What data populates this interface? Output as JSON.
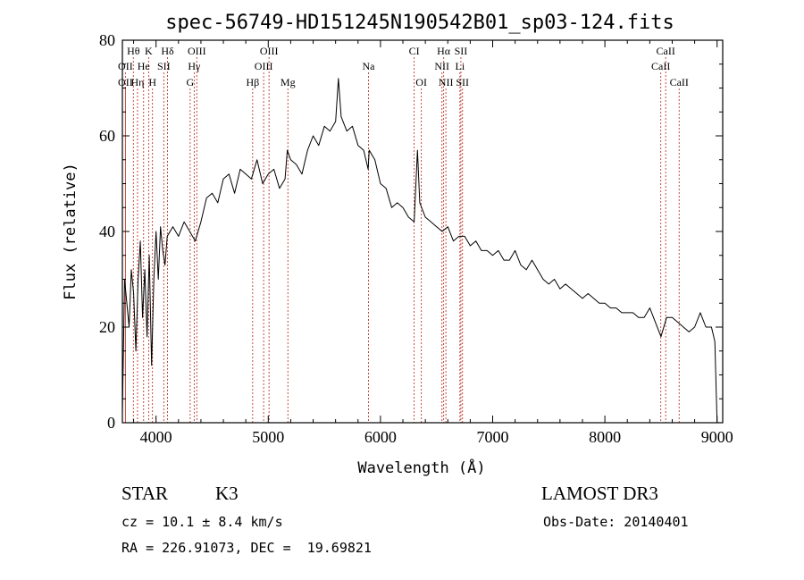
{
  "chart_data": {
    "type": "line",
    "title": "spec-56749-HD151245N190542B01_sp03-124.fits",
    "xlabel": "Wavelength (Å)",
    "ylabel": "Flux (relative)",
    "xlim": [
      3700,
      9050
    ],
    "ylim": [
      0,
      80
    ],
    "xticks": [
      4000,
      5000,
      6000,
      7000,
      8000,
      9000
    ],
    "yticks": [
      0,
      20,
      40,
      60,
      80
    ],
    "grid": false,
    "series": [
      {
        "x": [
          3700,
          3720,
          3740,
          3760,
          3780,
          3800,
          3820,
          3840,
          3860,
          3880,
          3900,
          3920,
          3940,
          3960,
          3980,
          4000,
          4020,
          4040,
          4060,
          4080,
          4100,
          4150,
          4200,
          4250,
          4300,
          4350,
          4400,
          4450,
          4500,
          4550,
          4600,
          4650,
          4700,
          4750,
          4800,
          4850,
          4900,
          4950,
          5000,
          5050,
          5100,
          5150,
          5170,
          5200,
          5250,
          5300,
          5350,
          5400,
          5450,
          5500,
          5550,
          5600,
          5625,
          5650,
          5700,
          5750,
          5800,
          5850,
          5890,
          5900,
          5950,
          6000,
          6050,
          6100,
          6150,
          6200,
          6250,
          6300,
          6330,
          6350,
          6400,
          6450,
          6500,
          6550,
          6600,
          6650,
          6700,
          6750,
          6800,
          6850,
          6900,
          6950,
          7000,
          7050,
          7100,
          7150,
          7200,
          7250,
          7300,
          7350,
          7400,
          7450,
          7500,
          7550,
          7600,
          7650,
          7700,
          7750,
          7800,
          7850,
          7900,
          7950,
          8000,
          8050,
          8100,
          8150,
          8200,
          8250,
          8300,
          8350,
          8400,
          8450,
          8500,
          8550,
          8600,
          8650,
          8700,
          8750,
          8800,
          8850,
          8900,
          8950,
          8980,
          9000
        ],
        "y": [
          2,
          30,
          25,
          20,
          32,
          27,
          15,
          30,
          38,
          22,
          32,
          18,
          35,
          12,
          30,
          40,
          30,
          41,
          36,
          33,
          39,
          41,
          39,
          42,
          40,
          38,
          42,
          47,
          48,
          46,
          51,
          52,
          48,
          53,
          52,
          51,
          55,
          50,
          52,
          53,
          49,
          51,
          57,
          55,
          54,
          52,
          57,
          60,
          58,
          62,
          61,
          63,
          72,
          64,
          61,
          62,
          58,
          57,
          53,
          57,
          55,
          50,
          49,
          45,
          46,
          45,
          43,
          42,
          57,
          46,
          43,
          42,
          41,
          40,
          41,
          38,
          39,
          39,
          37,
          38,
          36,
          36,
          35,
          36,
          34,
          34,
          36,
          33,
          32,
          34,
          32,
          30,
          29,
          30,
          28,
          29,
          28,
          27,
          26,
          27,
          26,
          25,
          25,
          24,
          24,
          23,
          23,
          23,
          22,
          22,
          24,
          21,
          18,
          22,
          22,
          21,
          20,
          19,
          20,
          23,
          20,
          20,
          17,
          0
        ]
      }
    ],
    "spectral_lines": [
      {
        "label": "Hθ",
        "x": 3798,
        "row": 0
      },
      {
        "label": "K",
        "x": 3934,
        "row": 0
      },
      {
        "label": "Hδ",
        "x": 4102,
        "row": 0
      },
      {
        "label": "OIII",
        "x": 4363,
        "row": 0
      },
      {
        "label": "OIII",
        "x": 5007,
        "row": 0
      },
      {
        "label": "CI",
        "x": 6300,
        "row": 0
      },
      {
        "label": "Hα",
        "x": 6563,
        "row": 0
      },
      {
        "label": "SII",
        "x": 6717,
        "row": 0
      },
      {
        "label": "CaII",
        "x": 8542,
        "row": 0
      },
      {
        "label": "OII",
        "x": 3727,
        "row": 1
      },
      {
        "label": "He",
        "x": 3889,
        "row": 1
      },
      {
        "label": "SII",
        "x": 4069,
        "row": 1
      },
      {
        "label": "Hγ",
        "x": 4340,
        "row": 1
      },
      {
        "label": "OIII",
        "x": 4959,
        "row": 1
      },
      {
        "label": "Na",
        "x": 5893,
        "row": 1
      },
      {
        "label": "NII",
        "x": 6548,
        "row": 1
      },
      {
        "label": "Li",
        "x": 6708,
        "row": 1
      },
      {
        "label": "CaII",
        "x": 8498,
        "row": 1
      },
      {
        "label": "OII",
        "x": 3727,
        "row": 2
      },
      {
        "label": "Hη",
        "x": 3835,
        "row": 2
      },
      {
        "label": "H",
        "x": 3968,
        "row": 2
      },
      {
        "label": "G",
        "x": 4304,
        "row": 2
      },
      {
        "label": "Hβ",
        "x": 4861,
        "row": 2
      },
      {
        "label": "Mg",
        "x": 5175,
        "row": 2
      },
      {
        "label": "OI",
        "x": 6364,
        "row": 2
      },
      {
        "label": "NII",
        "x": 6583,
        "row": 2
      },
      {
        "label": "SII",
        "x": 6731,
        "row": 2
      },
      {
        "label": "CaII",
        "x": 8662,
        "row": 2
      }
    ]
  },
  "info": {
    "object_class": "STAR",
    "subclass": "K3",
    "survey": "LAMOST DR3",
    "redshift_line": "cz = 10.1 ± 8.4 km/s",
    "obs_date_line": "Obs-Date: 20140401",
    "coords_line": "RA = 226.91073, DEC =  19.69821"
  },
  "colors": {
    "spectrum": "#000000",
    "line_markers": "#c0392b",
    "axes": "#000000"
  }
}
